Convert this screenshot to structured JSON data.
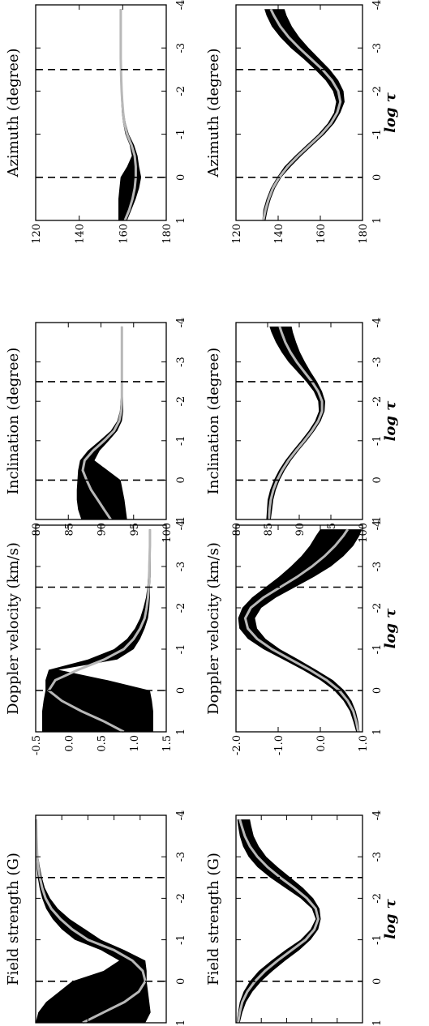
{
  "chart_data": [
    {
      "type": "area",
      "title": "Field strength (G)",
      "xlabel": "",
      "xlim": [
        1,
        -4
      ],
      "ylim": [
        0,
        500
      ],
      "yticks": [
        0,
        100,
        200,
        300,
        400,
        500
      ],
      "ytick_labels": [
        "0",
        "100",
        "200",
        "300",
        "400",
        "500"
      ],
      "xticks": [
        1,
        0,
        -1,
        -2,
        -3,
        -4
      ],
      "xtick_labels": [
        "1",
        "0",
        "-1",
        "-2",
        "-3",
        "-4"
      ],
      "dashed_lines_at_x": [
        0,
        -2.5
      ],
      "x": [
        1,
        0.75,
        0.5,
        0.25,
        0,
        -0.25,
        -0.5,
        -0.75,
        -1,
        -1.25,
        -1.5,
        -1.75,
        -2,
        -2.25,
        -2.5,
        -2.75,
        -3,
        -3.5,
        -3.9
      ],
      "median": [
        180,
        260,
        340,
        395,
        420,
        410,
        370,
        300,
        200,
        140,
        95,
        60,
        38,
        25,
        16,
        10,
        6,
        3,
        2
      ],
      "lower": [
        0,
        10,
        40,
        90,
        140,
        260,
        320,
        250,
        150,
        100,
        65,
        40,
        25,
        15,
        8,
        4,
        2,
        0,
        0
      ],
      "upper": [
        420,
        440,
        435,
        430,
        425,
        425,
        420,
        340,
        250,
        190,
        130,
        85,
        55,
        35,
        24,
        16,
        10,
        5,
        4
      ]
    },
    {
      "type": "area",
      "title": "Doppler velocity (km/s)",
      "xlabel": "",
      "xlim": [
        1,
        -4
      ],
      "ylim": [
        -0.5,
        1.5
      ],
      "yticks": [
        -0.5,
        0,
        0.5,
        1,
        1.5
      ],
      "ytick_labels": [
        "-0.5",
        "0.0",
        "0.5",
        "1.0",
        "1.5"
      ],
      "xticks": [
        1,
        0,
        -1,
        -2,
        -3,
        -4
      ],
      "xtick_labels": [
        "1",
        "0",
        "-1",
        "-2",
        "-3",
        "-4"
      ],
      "dashed_lines_at_x": [
        0,
        -2.5
      ],
      "x": [
        1,
        0.75,
        0.5,
        0.25,
        0,
        -0.25,
        -0.5,
        -0.75,
        -1,
        -1.25,
        -1.5,
        -1.75,
        -2,
        -2.25,
        -2.5,
        -2.75,
        -3,
        -3.5,
        -3.9
      ],
      "median": [
        0.85,
        0.55,
        0.2,
        -0.1,
        -0.3,
        -0.2,
        0.15,
        0.55,
        0.85,
        1.0,
        1.1,
        1.17,
        1.2,
        1.22,
        1.23,
        1.24,
        1.24,
        1.25,
        1.25
      ],
      "lower": [
        -0.4,
        -0.4,
        -0.4,
        -0.38,
        -0.35,
        -0.35,
        -0.3,
        0.3,
        0.7,
        0.9,
        1.02,
        1.1,
        1.15,
        1.19,
        1.21,
        1.22,
        1.23,
        1.24,
        1.24
      ],
      "upper": [
        1.3,
        1.3,
        1.3,
        1.28,
        1.25,
        0.6,
        -0.15,
        0.75,
        1.0,
        1.1,
        1.17,
        1.22,
        1.24,
        1.25,
        1.25,
        1.26,
        1.26,
        1.26,
        1.26
      ]
    },
    {
      "type": "area",
      "title": "Inclination (degree)",
      "xlabel": "",
      "xlim": [
        1,
        -4
      ],
      "ylim": [
        80,
        100
      ],
      "yticks": [
        80,
        85,
        90,
        95,
        100
      ],
      "ytick_labels": [
        "80",
        "85",
        "90",
        "95",
        "100"
      ],
      "xticks": [
        1,
        0,
        -1,
        -2,
        -3,
        -4
      ],
      "xtick_labels": [
        "1",
        "0",
        "-1",
        "-2",
        "-3",
        "-4"
      ],
      "dashed_lines_at_x": [
        0,
        -2.5
      ],
      "x": [
        1,
        0.75,
        0.5,
        0.25,
        0,
        -0.25,
        -0.5,
        -0.75,
        -1,
        -1.25,
        -1.5,
        -1.75,
        -2,
        -2.25,
        -2.5,
        -2.75,
        -3,
        -3.5,
        -3.9
      ],
      "median": [
        91.5,
        90.5,
        89.5,
        88.5,
        87.8,
        87.2,
        87.5,
        88.8,
        90.5,
        92.0,
        92.8,
        93.1,
        93.2,
        93.2,
        93.2,
        93.2,
        93.2,
        93.2,
        93.2
      ],
      "lower": [
        87,
        86.5,
        86.3,
        86.3,
        86.4,
        86.5,
        86.8,
        88.0,
        89.8,
        91.5,
        92.5,
        92.9,
        93.0,
        93.1,
        93.1,
        93.1,
        93.1,
        93.1,
        93.1
      ],
      "upper": [
        94,
        93.8,
        93.6,
        93.3,
        93.0,
        91.0,
        89.0,
        89.8,
        91.2,
        92.5,
        93.2,
        93.4,
        93.4,
        93.3,
        93.3,
        93.3,
        93.3,
        93.3,
        93.3
      ]
    },
    {
      "type": "area",
      "title": "Azimuth (degree)",
      "xlabel": "",
      "xlim": [
        1,
        -4
      ],
      "ylim": [
        120,
        180
      ],
      "yticks": [
        120,
        140,
        160,
        180
      ],
      "ytick_labels": [
        "120",
        "140",
        "160",
        "180"
      ],
      "xticks": [
        1,
        0,
        -1,
        -2,
        -3,
        -4
      ],
      "xtick_labels": [
        "1",
        "0",
        "-1",
        "-2",
        "-3",
        "-4"
      ],
      "dashed_lines_at_x": [
        0,
        -2.5
      ],
      "x": [
        1,
        0.75,
        0.5,
        0.25,
        0,
        -0.25,
        -0.5,
        -0.75,
        -1,
        -1.25,
        -1.5,
        -1.75,
        -2,
        -2.25,
        -2.5,
        -2.75,
        -3,
        -3.5,
        -3.9
      ],
      "median": [
        161,
        163,
        164.5,
        165.5,
        166,
        166,
        165.5,
        164,
        162,
        160.8,
        160.2,
        159.8,
        159.5,
        159.3,
        159.2,
        159.1,
        159.1,
        159.1,
        159.1
      ],
      "lower": [
        158,
        158,
        158,
        158.5,
        159,
        162,
        164.2,
        163.2,
        161.2,
        160.2,
        159.6,
        159.3,
        159.1,
        159.0,
        158.9,
        158.9,
        158.9,
        158.9,
        158.9
      ],
      "upper": [
        162,
        164,
        166,
        167.5,
        168.5,
        167.5,
        166.8,
        165.2,
        162.8,
        161.4,
        160.6,
        160.2,
        159.9,
        159.6,
        159.4,
        159.3,
        159.3,
        159.3,
        159.3
      ]
    },
    {
      "type": "area",
      "title": "Field strength (G)",
      "xlabel": "log τ",
      "xlim": [
        1,
        -4
      ],
      "ylim": [
        0,
        500
      ],
      "yticks": [
        0,
        100,
        200,
        300,
        400,
        500
      ],
      "ytick_labels": [
        "0",
        "100",
        "200",
        "300",
        "400",
        "500"
      ],
      "xticks": [
        1,
        0,
        -1,
        -2,
        -3,
        -4
      ],
      "xtick_labels": [
        "1",
        "0",
        "-1",
        "-2",
        "-3",
        "-4"
      ],
      "dashed_lines_at_x": [
        0,
        -2.5
      ],
      "x": [
        1,
        0.75,
        0.5,
        0.25,
        0,
        -0.25,
        -0.5,
        -0.75,
        -1,
        -1.25,
        -1.5,
        -1.75,
        -2,
        -2.25,
        -2.5,
        -2.75,
        -3,
        -3.25,
        -3.5,
        -3.75,
        -3.9
      ],
      "median": [
        8,
        15,
        25,
        45,
        75,
        115,
        165,
        220,
        275,
        310,
        325,
        315,
        280,
        230,
        175,
        125,
        85,
        55,
        35,
        22,
        15
      ],
      "lower": [
        2,
        8,
        15,
        30,
        55,
        90,
        140,
        195,
        255,
        295,
        315,
        300,
        255,
        195,
        135,
        85,
        50,
        28,
        15,
        8,
        5
      ],
      "upper": [
        15,
        25,
        40,
        65,
        100,
        145,
        195,
        250,
        295,
        325,
        335,
        330,
        305,
        265,
        215,
        165,
        120,
        90,
        70,
        60,
        55
      ]
    },
    {
      "type": "area",
      "title": "Doppler velocity (km/s)",
      "xlabel": "log τ",
      "xlim": [
        1,
        -4
      ],
      "ylim": [
        -2,
        1
      ],
      "yticks": [
        -2,
        -1,
        0,
        1
      ],
      "ytick_labels": [
        "-2.0",
        "-1.0",
        "0.0",
        "1.0"
      ],
      "xticks": [
        1,
        0,
        -1,
        -2,
        -3,
        -4
      ],
      "xtick_labels": [
        "1",
        "0",
        "-1",
        "-2",
        "-3",
        "-4"
      ],
      "dashed_lines_at_x": [
        0,
        -2.5
      ],
      "x": [
        1,
        0.75,
        0.5,
        0.25,
        0,
        -0.25,
        -0.5,
        -0.75,
        -1,
        -1.25,
        -1.5,
        -1.75,
        -2,
        -2.25,
        -2.5,
        -2.75,
        -3,
        -3.25,
        -3.5,
        -3.75,
        -3.9
      ],
      "median": [
        0.9,
        0.85,
        0.78,
        0.65,
        0.45,
        0.15,
        -0.25,
        -0.7,
        -1.15,
        -1.5,
        -1.72,
        -1.78,
        -1.65,
        -1.35,
        -0.95,
        -0.55,
        -0.2,
        0.1,
        0.35,
        0.55,
        0.65
      ],
      "lower": [
        0.85,
        0.78,
        0.7,
        0.55,
        0.33,
        0.0,
        -0.42,
        -0.88,
        -1.35,
        -1.72,
        -1.92,
        -1.95,
        -1.85,
        -1.62,
        -1.3,
        -0.98,
        -0.7,
        -0.45,
        -0.25,
        -0.1,
        0.0
      ],
      "upper": [
        0.93,
        0.9,
        0.84,
        0.74,
        0.57,
        0.3,
        -0.1,
        -0.52,
        -0.96,
        -1.3,
        -1.5,
        -1.55,
        -1.4,
        -1.05,
        -0.6,
        -0.15,
        0.25,
        0.55,
        0.78,
        0.93,
        0.98
      ]
    },
    {
      "type": "area",
      "title": "Inclination (degree)",
      "xlabel": "log τ",
      "xlim": [
        1,
        -4
      ],
      "ylim": [
        80,
        100
      ],
      "yticks": [
        80,
        85,
        90,
        95,
        100
      ],
      "ytick_labels": [
        "80",
        "85",
        "90",
        "95",
        "100"
      ],
      "xticks": [
        1,
        0,
        -1,
        -2,
        -3,
        -4
      ],
      "xtick_labels": [
        "1",
        "0",
        "-1",
        "-2",
        "-3",
        "-4"
      ],
      "dashed_lines_at_x": [
        0,
        -2.5
      ],
      "x": [
        1,
        0.75,
        0.5,
        0.25,
        0,
        -0.25,
        -0.5,
        -0.75,
        -1,
        -1.25,
        -1.5,
        -1.75,
        -2,
        -2.25,
        -2.5,
        -2.75,
        -3,
        -3.25,
        -3.5,
        -3.75,
        -3.9
      ],
      "median": [
        85.2,
        85.3,
        85.5,
        85.9,
        86.5,
        87.3,
        88.3,
        89.5,
        90.8,
        92.0,
        93.0,
        93.6,
        93.6,
        93.0,
        92.0,
        90.8,
        89.6,
        88.6,
        87.8,
        87.2,
        86.9
      ],
      "lower": [
        84.8,
        84.9,
        85.0,
        85.4,
        86.0,
        86.8,
        87.8,
        89.0,
        90.3,
        91.5,
        92.5,
        93.1,
        93.0,
        92.3,
        91.1,
        89.7,
        88.3,
        87.2,
        86.3,
        85.6,
        85.3
      ],
      "upper": [
        85.5,
        85.7,
        85.9,
        86.3,
        86.9,
        87.7,
        88.7,
        89.9,
        91.2,
        92.4,
        93.4,
        94.0,
        94.1,
        93.6,
        92.8,
        91.8,
        90.9,
        90.1,
        89.5,
        89.0,
        88.8
      ]
    },
    {
      "type": "area",
      "title": "Azimuth (degree)",
      "xlabel": "log τ",
      "xlim": [
        1,
        -4
      ],
      "ylim": [
        120,
        180
      ],
      "yticks": [
        120,
        140,
        160,
        180
      ],
      "ytick_labels": [
        "120",
        "140",
        "160",
        "180"
      ],
      "xticks": [
        1,
        0,
        -1,
        -2,
        -3,
        -4
      ],
      "xtick_labels": [
        "1",
        "0",
        "-1",
        "-2",
        "-3",
        "-4"
      ],
      "dashed_lines_at_x": [
        0,
        -2.5
      ],
      "x": [
        1,
        0.75,
        0.5,
        0.25,
        0,
        -0.25,
        -0.5,
        -0.75,
        -1,
        -1.25,
        -1.5,
        -1.75,
        -2,
        -2.25,
        -2.5,
        -2.75,
        -3,
        -3.25,
        -3.5,
        -3.75,
        -3.9
      ],
      "median": [
        133,
        134,
        135.5,
        137.5,
        140.5,
        144.5,
        149.5,
        155,
        160.5,
        165,
        168,
        169.5,
        168.5,
        165.5,
        161,
        155.5,
        150,
        145,
        141,
        138,
        136.5
      ],
      "lower": [
        132.5,
        133,
        134.5,
        136.5,
        139.5,
        143,
        148,
        153.5,
        159,
        163.5,
        166.5,
        167.5,
        166,
        162.5,
        157.5,
        152,
        146,
        141,
        137,
        134.5,
        133.5
      ],
      "upper": [
        134,
        135,
        136.5,
        138.5,
        141.5,
        146,
        151,
        156.5,
        162,
        166.5,
        169.5,
        171.5,
        171,
        168.5,
        164.5,
        159.5,
        154.5,
        150,
        146.5,
        144,
        143
      ]
    }
  ]
}
